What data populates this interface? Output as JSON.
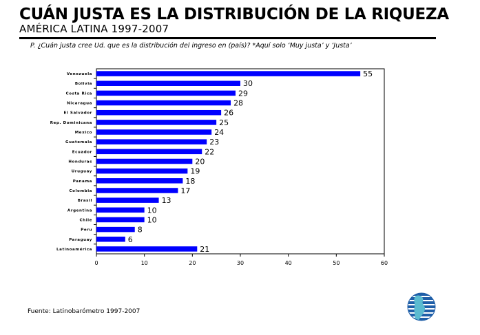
{
  "header": {
    "title": "CUÁN JUSTA  ES LA DISTRIBUCIÓN DE LA RIQUEZA",
    "subtitle": "AMÉRICA LATINA 1997-2007",
    "question": "P. ¿Cuán justa cree Ud. que es la distribución del ingreso en (país)? *Aquí solo ‘Muy justa’ y ‘Justa’"
  },
  "footer": {
    "source": "Fuente: Latinobarómetro 1997-2007"
  },
  "logo": {
    "icon": "globe-logo-icon"
  },
  "colors": {
    "bar": "#0000ff",
    "axis": "#000000",
    "logo_blue": "#1f5fa8",
    "logo_teal": "#5bbbd0"
  },
  "chart_data": {
    "type": "bar",
    "orientation": "horizontal",
    "categories": [
      "Venezuela",
      "Bolivia",
      "Costa Rica",
      "Nicaragua",
      "El Salvador",
      "Rep. Dominicana",
      "Mexico",
      "Guatemala",
      "Ecuador",
      "Honduras",
      "Uruguay",
      "Panama",
      "Colombia",
      "Brasil",
      "Argentina",
      "Chile",
      "Peru",
      "Paraguay",
      "Latinoamérica"
    ],
    "values": [
      55,
      30,
      29,
      28,
      26,
      25,
      24,
      23,
      22,
      20,
      19,
      18,
      17,
      13,
      10,
      10,
      8,
      6,
      21
    ],
    "xlim": [
      0,
      60
    ],
    "xticks": [
      0,
      10,
      20,
      30,
      40,
      50,
      60
    ],
    "title": "",
    "xlabel": "",
    "ylabel": "",
    "grid": false,
    "data_labels": true
  }
}
